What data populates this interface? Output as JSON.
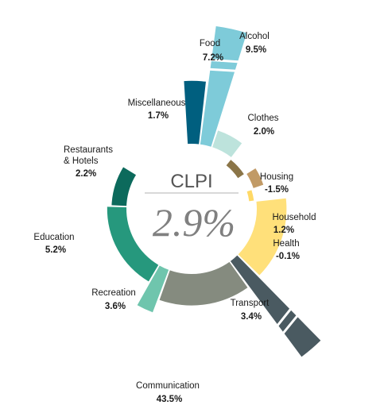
{
  "chart_data": {
    "type": "radial-bar",
    "center_title": "CLPI",
    "center_value": "2.9%",
    "categories": [
      {
        "name": "Food",
        "value": 7.2,
        "label": "7.2%",
        "color": "#005f7f"
      },
      {
        "name": "Alcohol",
        "value": 9.5,
        "label": "9.5%",
        "color": "#7ecbd9"
      },
      {
        "name": "Clothes",
        "value": 2.0,
        "label": "2.0%",
        "color": "#bde3dc"
      },
      {
        "name": "Housing",
        "value": -1.5,
        "label": "-1.5%",
        "color": "#8b7548"
      },
      {
        "name": "Household",
        "value": 1.2,
        "label": "1.2%",
        "color": "#c19a66"
      },
      {
        "name": "Health",
        "value": -0.1,
        "label": "-0.1%",
        "color": "#ffd966"
      },
      {
        "name": "Transport",
        "value": 3.4,
        "label": "3.4%",
        "color": "#ffe07a"
      },
      {
        "name": "Communication",
        "value": 43.5,
        "label": "43.5%",
        "color": "#4a5a61"
      },
      {
        "name": "Recreation",
        "value": 3.6,
        "label": "3.6%",
        "color": "#858b7f"
      },
      {
        "name": "Education",
        "value": 5.2,
        "label": "5.2%",
        "color": "#6fc5ad"
      },
      {
        "name": "Restaurants & Hotels",
        "value": 2.2,
        "label": "2.2%",
        "color": "#26987d"
      },
      {
        "name": "Miscellaneous",
        "value": 1.7,
        "label": "1.7%",
        "color": "#0c6a5c"
      }
    ]
  }
}
